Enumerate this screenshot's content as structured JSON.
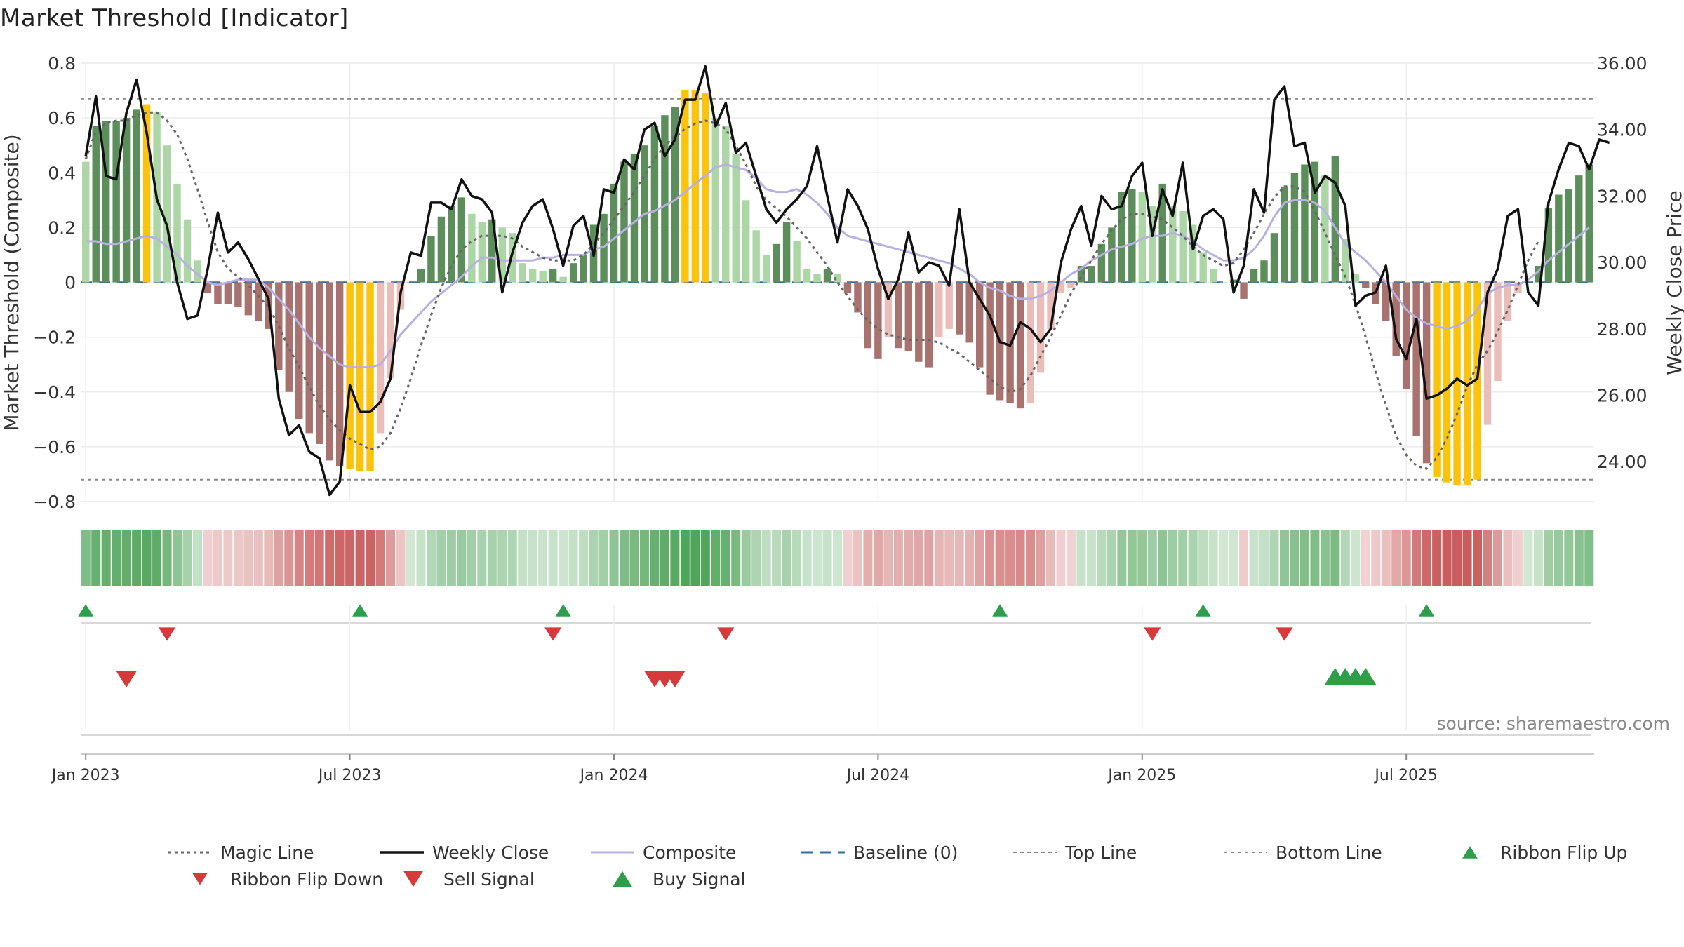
{
  "title": "Market Threshold [Indicator]",
  "source": "source: sharemaestro.com",
  "colors": {
    "bull_strong": "#5b8e5a",
    "bull_weak": "#acd6a6",
    "bear_strong": "#a8726e",
    "bear_weak": "#ebbdb8",
    "extreme": "#fbc30b",
    "composite": "#b8b0e0",
    "magic": "#666666",
    "close": "#111111",
    "baseline": "#2f6f9f",
    "threshold": "#888888",
    "buy": "#2e9e4a",
    "sell": "#d63a3a"
  },
  "chart_data": {
    "type": "bar",
    "title": "Market Threshold [Indicator]",
    "ylabel": "Market Threshold (Composite)",
    "y2label": "Weekly Close Price",
    "ylim": [
      -0.8,
      0.8
    ],
    "y2lim": [
      22.8,
      36.0
    ],
    "y_ticks": [
      "0.8",
      "0.6",
      "0.4",
      "0.2",
      "0",
      "−0.2",
      "−0.4",
      "−0.6",
      "−0.8"
    ],
    "y2_ticks": [
      "36.00",
      "34.00",
      "32.00",
      "30.00",
      "28.00",
      "26.00",
      "24.00"
    ],
    "x_ticks": [
      "Jan 2023",
      "Jul 2023",
      "Jan 2024",
      "Jul 2024",
      "Jan 2025",
      "Jul 2025"
    ],
    "x_tick_weeks": [
      0,
      26,
      52,
      78,
      104,
      130
    ],
    "top_line": 0.67,
    "bottom_line": -0.72,
    "composite_values": [
      0.44,
      0.57,
      0.59,
      0.59,
      0.6,
      0.63,
      0.65,
      0.62,
      0.5,
      0.36,
      0.23,
      0.08,
      -0.04,
      -0.08,
      -0.08,
      -0.09,
      -0.12,
      -0.14,
      -0.17,
      -0.32,
      -0.4,
      -0.5,
      -0.55,
      -0.59,
      -0.65,
      -0.67,
      -0.68,
      -0.69,
      -0.69,
      -0.55,
      -0.35,
      -0.1,
      0.0,
      0.05,
      0.17,
      0.24,
      0.28,
      0.31,
      0.25,
      0.22,
      0.23,
      0.2,
      0.18,
      0.07,
      0.05,
      0.04,
      0.05,
      0.02,
      0.07,
      0.1,
      0.21,
      0.25,
      0.36,
      0.44,
      0.47,
      0.5,
      0.57,
      0.61,
      0.64,
      0.7,
      0.7,
      0.69,
      0.6,
      0.57,
      0.47,
      0.3,
      0.19,
      0.1,
      0.14,
      0.22,
      0.15,
      0.05,
      0.03,
      0.05,
      0.03,
      -0.04,
      -0.11,
      -0.24,
      -0.28,
      -0.2,
      -0.24,
      -0.25,
      -0.29,
      -0.31,
      -0.2,
      -0.17,
      -0.19,
      -0.22,
      -0.31,
      -0.41,
      -0.43,
      -0.44,
      -0.46,
      -0.44,
      -0.33,
      -0.17,
      -0.04,
      -0.02,
      0.06,
      0.06,
      0.14,
      0.2,
      0.33,
      0.34,
      0.33,
      0.28,
      0.36,
      0.28,
      0.26,
      0.21,
      0.11,
      0.05,
      0.0,
      0.01,
      -0.06,
      0.05,
      0.08,
      0.18,
      0.35,
      0.4,
      0.43,
      0.44,
      0.39,
      0.46,
      0.16,
      0.03,
      -0.02,
      -0.08,
      -0.14,
      -0.27,
      -0.39,
      -0.56,
      -0.66,
      -0.71,
      -0.73,
      -0.74,
      -0.74,
      -0.72,
      -0.52,
      -0.36,
      -0.14,
      -0.04,
      0.0,
      0.06,
      0.27,
      0.32,
      0.34,
      0.39,
      0.43
    ],
    "composite_line": [
      0.15,
      0.15,
      0.14,
      0.14,
      0.15,
      0.16,
      0.17,
      0.16,
      0.13,
      0.1,
      0.06,
      0.03,
      0.0,
      -0.01,
      0.0,
      0.01,
      0.01,
      0.01,
      -0.02,
      -0.06,
      -0.1,
      -0.15,
      -0.2,
      -0.24,
      -0.27,
      -0.3,
      -0.31,
      -0.31,
      -0.31,
      -0.3,
      -0.25,
      -0.19,
      -0.15,
      -0.11,
      -0.07,
      -0.04,
      -0.01,
      0.02,
      0.06,
      0.09,
      0.09,
      0.08,
      0.08,
      0.08,
      0.08,
      0.09,
      0.09,
      0.1,
      0.1,
      0.1,
      0.12,
      0.13,
      0.16,
      0.19,
      0.22,
      0.25,
      0.26,
      0.28,
      0.3,
      0.33,
      0.36,
      0.39,
      0.42,
      0.43,
      0.42,
      0.41,
      0.38,
      0.34,
      0.33,
      0.33,
      0.34,
      0.32,
      0.29,
      0.25,
      0.2,
      0.17,
      0.16,
      0.15,
      0.14,
      0.13,
      0.12,
      0.11,
      0.1,
      0.09,
      0.08,
      0.07,
      0.05,
      0.03,
      0.0,
      -0.02,
      -0.03,
      -0.05,
      -0.06,
      -0.06,
      -0.05,
      -0.03,
      0.0,
      0.03,
      0.05,
      0.08,
      0.1,
      0.12,
      0.13,
      0.14,
      0.16,
      0.17,
      0.17,
      0.18,
      0.17,
      0.15,
      0.12,
      0.1,
      0.08,
      0.08,
      0.09,
      0.12,
      0.17,
      0.24,
      0.29,
      0.3,
      0.3,
      0.29,
      0.26,
      0.2,
      0.14,
      0.11,
      0.08,
      0.04,
      0.0,
      -0.05,
      -0.1,
      -0.13,
      -0.15,
      -0.16,
      -0.17,
      -0.16,
      -0.14,
      -0.1,
      -0.04,
      -0.02,
      -0.01,
      -0.01,
      0.01,
      0.04,
      0.08,
      0.11,
      0.14,
      0.17,
      0.2
    ],
    "magic_line": [
      0.45,
      0.55,
      0.58,
      0.59,
      0.59,
      0.61,
      0.62,
      0.62,
      0.59,
      0.54,
      0.45,
      0.34,
      0.22,
      0.11,
      0.05,
      0.02,
      -0.01,
      -0.05,
      -0.09,
      -0.16,
      -0.24,
      -0.31,
      -0.38,
      -0.45,
      -0.5,
      -0.54,
      -0.57,
      -0.59,
      -0.61,
      -0.6,
      -0.55,
      -0.46,
      -0.35,
      -0.23,
      -0.12,
      -0.02,
      0.06,
      0.12,
      0.15,
      0.17,
      0.17,
      0.17,
      0.16,
      0.13,
      0.11,
      0.09,
      0.08,
      0.08,
      0.08,
      0.1,
      0.14,
      0.18,
      0.23,
      0.28,
      0.33,
      0.39,
      0.45,
      0.5,
      0.53,
      0.56,
      0.58,
      0.59,
      0.58,
      0.56,
      0.5,
      0.43,
      0.35,
      0.3,
      0.27,
      0.24,
      0.2,
      0.16,
      0.11,
      0.06,
      0.0,
      -0.05,
      -0.1,
      -0.14,
      -0.17,
      -0.19,
      -0.2,
      -0.21,
      -0.21,
      -0.21,
      -0.22,
      -0.24,
      -0.26,
      -0.29,
      -0.32,
      -0.35,
      -0.38,
      -0.4,
      -0.39,
      -0.34,
      -0.27,
      -0.2,
      -0.12,
      -0.04,
      0.02,
      0.08,
      0.14,
      0.19,
      0.23,
      0.25,
      0.25,
      0.24,
      0.23,
      0.2,
      0.17,
      0.13,
      0.1,
      0.08,
      0.06,
      0.07,
      0.12,
      0.18,
      0.25,
      0.31,
      0.35,
      0.35,
      0.33,
      0.26,
      0.18,
      0.1,
      0.02,
      -0.08,
      -0.2,
      -0.33,
      -0.45,
      -0.56,
      -0.63,
      -0.67,
      -0.68,
      -0.64,
      -0.57,
      -0.48,
      -0.38,
      -0.3,
      -0.25,
      -0.18,
      -0.1,
      -0.01,
      0.08,
      0.15
    ],
    "weekly_close": [
      33.2,
      35.0,
      32.6,
      32.5,
      34.5,
      35.5,
      33.9,
      31.9,
      31.1,
      29.4,
      28.3,
      28.4,
      29.8,
      31.5,
      30.3,
      30.6,
      30.1,
      29.5,
      28.9,
      25.9,
      24.8,
      25.1,
      24.3,
      24.1,
      23.0,
      23.4,
      26.3,
      25.5,
      25.5,
      25.8,
      26.5,
      29.1,
      30.3,
      30.2,
      31.8,
      31.8,
      31.6,
      32.5,
      32.0,
      31.9,
      31.5,
      29.1,
      30.3,
      31.2,
      31.7,
      31.9,
      31.0,
      29.9,
      31.1,
      31.4,
      30.2,
      32.2,
      32.1,
      33.1,
      32.8,
      34.0,
      34.2,
      33.2,
      33.7,
      34.9,
      34.9,
      35.9,
      34.1,
      34.8,
      33.3,
      33.6,
      32.6,
      31.6,
      31.2,
      31.6,
      31.9,
      32.3,
      33.5,
      32.0,
      30.6,
      32.2,
      31.7,
      31.0,
      29.8,
      28.9,
      29.5,
      30.9,
      29.7,
      30.0,
      29.9,
      29.3,
      31.6,
      29.4,
      28.9,
      28.4,
      27.6,
      27.5,
      28.2,
      28.0,
      27.6,
      28.0,
      30.0,
      31.0,
      31.7,
      30.5,
      32.0,
      31.6,
      31.7,
      32.6,
      33.0,
      30.8,
      32.2,
      31.4,
      33.0,
      30.4,
      31.4,
      31.6,
      31.3,
      29.1,
      29.9,
      32.2,
      31.5,
      34.9,
      35.3,
      33.5,
      33.6,
      32.1,
      32.6,
      32.4,
      31.7,
      28.7,
      29.0,
      29.1,
      29.9,
      27.7,
      27.1,
      28.3,
      25.9,
      26.0,
      26.2,
      26.5,
      26.3,
      26.5,
      29.1,
      29.8,
      31.4,
      31.6,
      29.1,
      28.7,
      31.8,
      32.8,
      33.6,
      33.5,
      32.8,
      33.7,
      33.6
    ],
    "ribbon_flip_up_weeks": [
      0,
      27,
      47,
      90,
      110,
      132
    ],
    "ribbon_flip_down_weeks": [
      8,
      46,
      63,
      105,
      118
    ],
    "sell_signal_weeks": [
      4,
      56,
      57,
      58
    ],
    "buy_signal_weeks": [
      123,
      124,
      125,
      126
    ]
  },
  "legend": [
    {
      "label": "Magic Line",
      "icon": "dotted-line-icon"
    },
    {
      "label": "Weekly Close",
      "icon": "solid-line-icon"
    },
    {
      "label": "Composite",
      "icon": "solid-line-icon"
    },
    {
      "label": "Baseline (0)",
      "icon": "dashed-line-icon"
    },
    {
      "label": "Top Line",
      "icon": "dotted-line-icon"
    },
    {
      "label": "Bottom Line",
      "icon": "dotted-line-icon"
    },
    {
      "label": "Ribbon Flip Up",
      "icon": "triangle-up-icon"
    },
    {
      "label": "Ribbon Flip Down",
      "icon": "triangle-down-icon"
    },
    {
      "label": "Sell Signal",
      "icon": "triangle-down-icon"
    },
    {
      "label": "Buy Signal",
      "icon": "triangle-up-icon"
    }
  ]
}
